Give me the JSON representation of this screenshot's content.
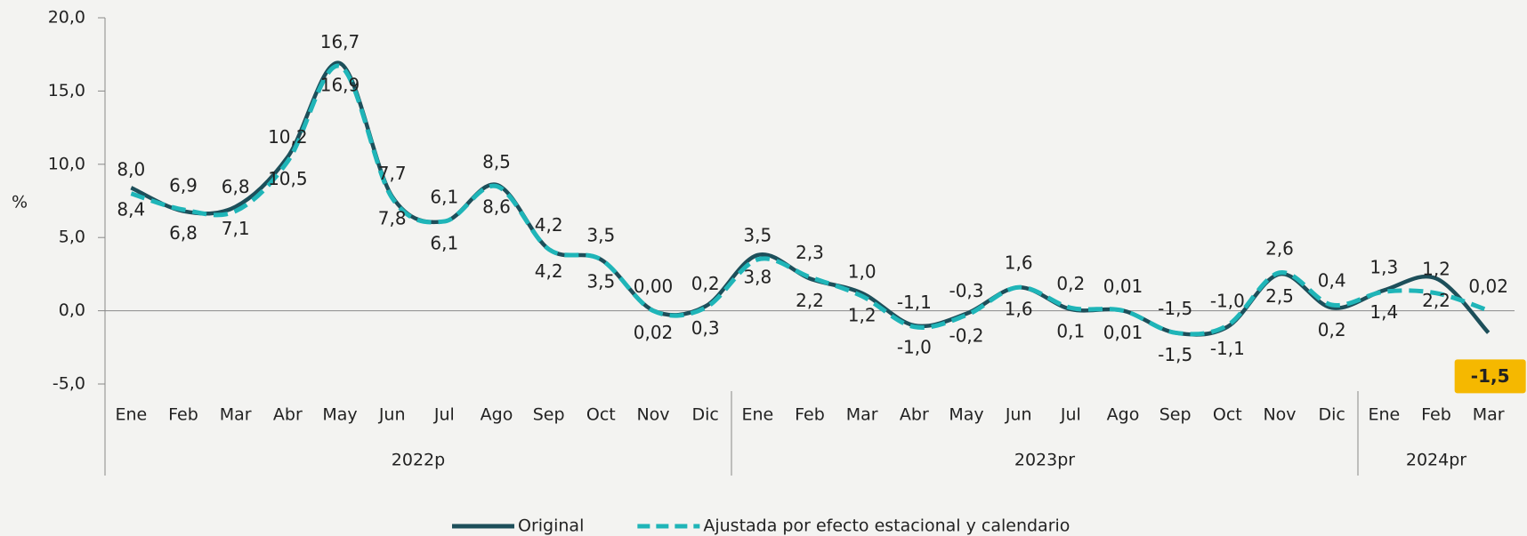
{
  "chart_data": {
    "type": "line",
    "y_label": "%",
    "groups": [
      {
        "name": "2022p",
        "categories": [
          "Ene",
          "Feb",
          "Mar",
          "Abr",
          "May",
          "Jun",
          "Jul",
          "Ago",
          "Sep",
          "Oct",
          "Nov",
          "Dic"
        ]
      },
      {
        "name": "2023pr",
        "categories": [
          "Ene",
          "Feb",
          "Mar",
          "Abr",
          "May",
          "Jun",
          "Jul",
          "Ago",
          "Sep",
          "Oct",
          "Nov",
          "Dic"
        ]
      },
      {
        "name": "2024pr",
        "categories": [
          "Ene",
          "Feb",
          "Mar"
        ]
      }
    ],
    "series": [
      {
        "name": "Original",
        "color": "#1d4f5a",
        "dash": false,
        "values": [
          8.4,
          6.8,
          7.1,
          10.5,
          16.9,
          7.8,
          6.1,
          8.6,
          4.2,
          3.5,
          0.02,
          0.3,
          3.8,
          2.2,
          1.2,
          -1.0,
          -0.2,
          1.6,
          0.1,
          0.01,
          -1.5,
          -1.1,
          2.5,
          0.2,
          1.4,
          2.2,
          -1.5
        ],
        "value_labels": [
          "8,4",
          "6,8",
          "7,1",
          "10,5",
          "16,9",
          "7,8",
          "6,1",
          "8,6",
          "4,2",
          "3,5",
          "0,02",
          "0,3",
          "3,8",
          "2,2",
          "1,2",
          "-1,0",
          "-0,2",
          "1,6",
          "0,1",
          "0,01",
          "-1,5",
          "-1,1",
          "2,5",
          "0,2",
          "1,4",
          "2,2",
          "-1,5"
        ]
      },
      {
        "name": "Ajustada por efecto estacional y calendario",
        "color": "#1fb5b8",
        "dash": true,
        "values": [
          8.0,
          6.9,
          6.8,
          10.2,
          16.7,
          7.7,
          6.1,
          8.5,
          4.2,
          3.5,
          0.0,
          0.2,
          3.5,
          2.3,
          1.0,
          -1.1,
          -0.3,
          1.6,
          0.2,
          0.01,
          -1.5,
          -1.0,
          2.6,
          0.4,
          1.3,
          1.2,
          0.02
        ],
        "value_labels": [
          "8,0",
          "6,9",
          "6,8",
          "10,2",
          "16,7",
          "7,7",
          "6,1",
          "8,5",
          "4,2",
          "3,5",
          "0,00",
          "0,2",
          "3,5",
          "2,3",
          "1,0",
          "-1,1",
          "-0,3",
          "1,6",
          "0,2",
          "0,01",
          "-1,5",
          "-1,0",
          "2,6",
          "0,4",
          "1,3",
          "1,2",
          "0,02"
        ]
      }
    ],
    "ylim": [
      -5,
      20
    ],
    "yticks": [
      {
        "value": -5,
        "label": "-5,0"
      },
      {
        "value": 0,
        "label": "0,0"
      },
      {
        "value": 5,
        "label": "5,0"
      },
      {
        "value": 10,
        "label": "10,0"
      },
      {
        "value": 15,
        "label": "15,0"
      },
      {
        "value": 20,
        "label": "20,0"
      }
    ]
  }
}
